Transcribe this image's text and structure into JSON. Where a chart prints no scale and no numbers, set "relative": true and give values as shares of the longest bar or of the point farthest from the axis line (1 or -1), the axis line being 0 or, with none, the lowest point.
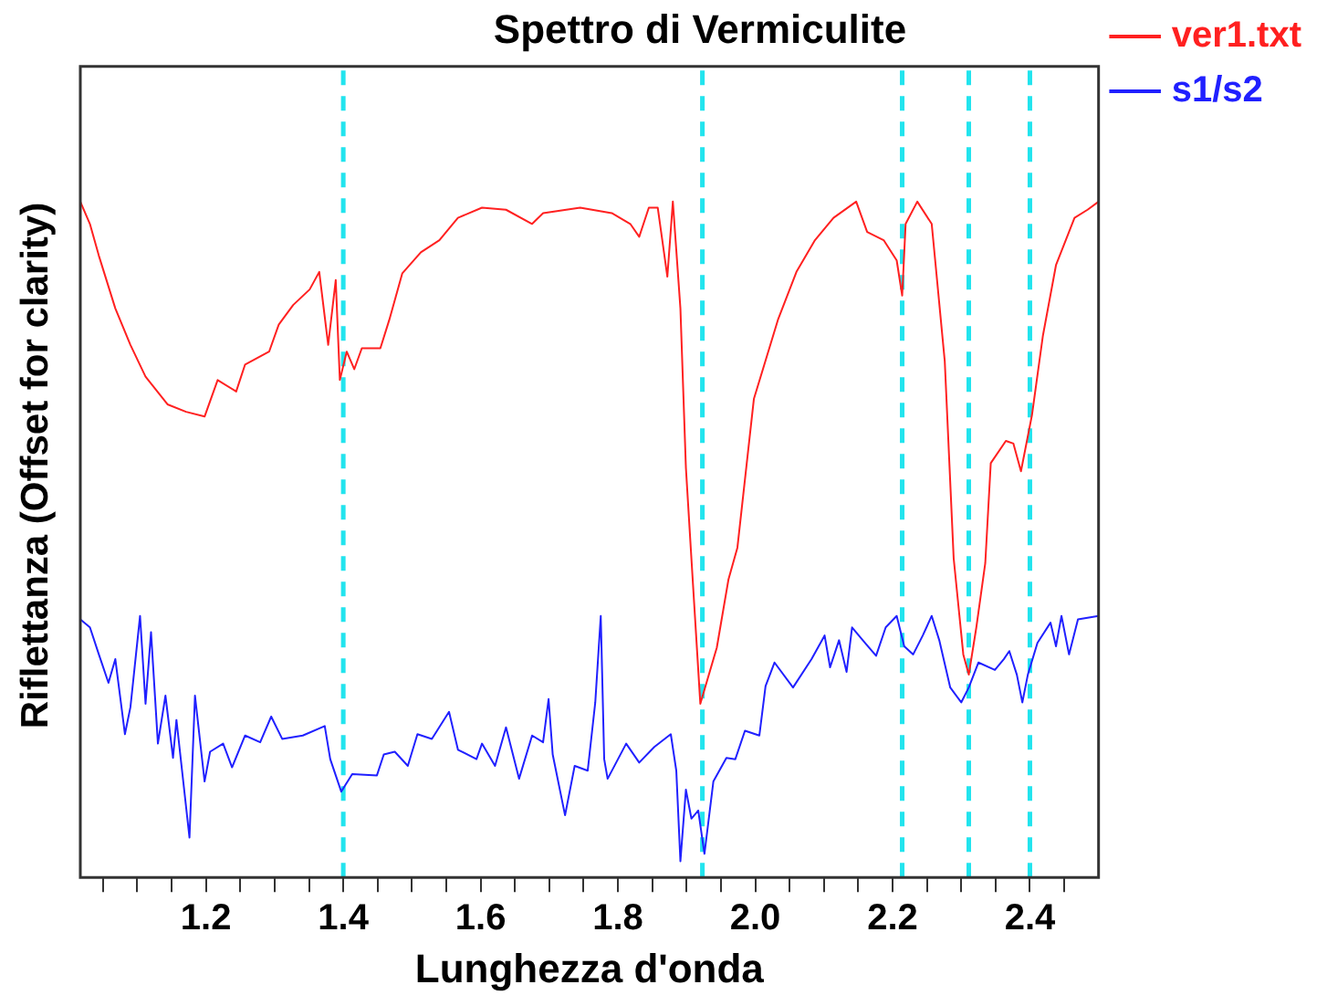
{
  "chart_data": {
    "type": "line",
    "title": "Spettro di Vermiculite",
    "xlabel": "Lunghezza d'onda",
    "ylabel": "Riflettanza (Offset for clarity)",
    "relative": true,
    "legend": "right",
    "xlim": [
      1.017,
      2.5
    ],
    "xticks": [
      {
        "value": 1.05,
        "label": null
      },
      {
        "value": 1.1,
        "label": null
      },
      {
        "value": 1.15,
        "label": null
      },
      {
        "value": 1.2,
        "label": "1.2"
      },
      {
        "value": 1.25,
        "label": null
      },
      {
        "value": 1.3,
        "label": null
      },
      {
        "value": 1.35,
        "label": null
      },
      {
        "value": 1.4,
        "label": "1.4"
      },
      {
        "value": 1.45,
        "label": null
      },
      {
        "value": 1.5,
        "label": null
      },
      {
        "value": 1.55,
        "label": null
      },
      {
        "value": 1.6,
        "label": "1.6"
      },
      {
        "value": 1.65,
        "label": null
      },
      {
        "value": 1.7,
        "label": null
      },
      {
        "value": 1.75,
        "label": null
      },
      {
        "value": 1.8,
        "label": "1.8"
      },
      {
        "value": 1.85,
        "label": null
      },
      {
        "value": 1.9,
        "label": null
      },
      {
        "value": 1.95,
        "label": null
      },
      {
        "value": 2.0,
        "label": "2.0"
      },
      {
        "value": 2.05,
        "label": null
      },
      {
        "value": 2.1,
        "label": null
      },
      {
        "value": 2.15,
        "label": null
      },
      {
        "value": 2.2,
        "label": "2.2"
      },
      {
        "value": 2.25,
        "label": null
      },
      {
        "value": 2.3,
        "label": null
      },
      {
        "value": 2.35,
        "label": null
      },
      {
        "value": 2.4,
        "label": "2.4"
      },
      {
        "value": 2.45,
        "label": null
      }
    ],
    "ref_lines": [
      {
        "axis": "x",
        "value": 1.4,
        "color": "#22e4ee",
        "line_style": "dashed"
      },
      {
        "axis": "x",
        "value": 1.923,
        "color": "#22e4ee",
        "line_style": "dashed"
      },
      {
        "axis": "x",
        "value": 2.214,
        "color": "#22e4ee",
        "line_style": "dashed"
      },
      {
        "axis": "x",
        "value": 2.311,
        "color": "#22e4ee",
        "line_style": "dashed"
      },
      {
        "axis": "x",
        "value": 2.4,
        "color": "#22e4ee",
        "line_style": "dashed"
      }
    ],
    "series": [
      {
        "name": "ver1.txt",
        "color": "#ff2020",
        "x": [
          1.017,
          1.031,
          1.044,
          1.068,
          1.09,
          1.112,
          1.144,
          1.171,
          1.198,
          1.217,
          1.244,
          1.257,
          1.292,
          1.306,
          1.327,
          1.351,
          1.365,
          1.378,
          1.389,
          1.395,
          1.405,
          1.416,
          1.427,
          1.454,
          1.467,
          1.486,
          1.513,
          1.54,
          1.567,
          1.602,
          1.637,
          1.675,
          1.691,
          1.745,
          1.791,
          1.818,
          1.831,
          1.845,
          1.858,
          1.872,
          1.88,
          1.891,
          1.899,
          1.907,
          1.92,
          1.944,
          1.961,
          1.974,
          1.998,
          2.033,
          2.06,
          2.087,
          2.114,
          2.147,
          2.163,
          2.187,
          2.206,
          2.214,
          2.219,
          2.236,
          2.257,
          2.276,
          2.289,
          2.303,
          2.311,
          2.322,
          2.335,
          2.343,
          2.365,
          2.376,
          2.387,
          2.403,
          2.419,
          2.438,
          2.465,
          2.484,
          2.5
        ],
        "values": [
          1,
          0.967,
          0.92,
          0.842,
          0.788,
          0.741,
          0.7,
          0.689,
          0.682,
          0.736,
          0.719,
          0.759,
          0.778,
          0.818,
          0.847,
          0.87,
          0.896,
          0.788,
          0.884,
          0.736,
          0.778,
          0.752,
          0.783,
          0.783,
          0.825,
          0.894,
          0.925,
          0.943,
          0.976,
          0.991,
          0.988,
          0.967,
          0.983,
          0.991,
          0.983,
          0.967,
          0.948,
          0.991,
          0.991,
          0.889,
          1,
          0.842,
          0.606,
          0.472,
          0.257,
          0.34,
          0.441,
          0.488,
          0.708,
          0.825,
          0.896,
          0.943,
          0.976,
          1,
          0.955,
          0.943,
          0.913,
          0.861,
          0.967,
          1,
          0.967,
          0.764,
          0.472,
          0.33,
          0.3,
          0.37,
          0.465,
          0.613,
          0.646,
          0.642,
          0.601,
          0.684,
          0.802,
          0.906,
          0.976,
          0.988,
          1
        ]
      },
      {
        "name": "s1/s2",
        "color": "#2020ff",
        "x": [
          1.017,
          1.031,
          1.044,
          1.058,
          1.068,
          1.082,
          1.09,
          1.104,
          1.112,
          1.12,
          1.13,
          1.141,
          1.152,
          1.157,
          1.176,
          1.184,
          1.198,
          1.206,
          1.225,
          1.238,
          1.257,
          1.279,
          1.295,
          1.311,
          1.341,
          1.373,
          1.381,
          1.397,
          1.413,
          1.449,
          1.459,
          1.475,
          1.494,
          1.508,
          1.529,
          1.554,
          1.567,
          1.594,
          1.602,
          1.621,
          1.637,
          1.656,
          1.675,
          1.691,
          1.699,
          1.705,
          1.723,
          1.737,
          1.756,
          1.767,
          1.775,
          1.78,
          1.785,
          1.812,
          1.831,
          1.853,
          1.877,
          1.885,
          1.891,
          1.899,
          1.907,
          1.917,
          1.926,
          1.939,
          1.958,
          1.971,
          1.985,
          2.006,
          2.015,
          2.028,
          2.055,
          2.082,
          2.101,
          2.109,
          2.122,
          2.133,
          2.141,
          2.16,
          2.176,
          2.19,
          2.206,
          2.217,
          2.23,
          2.244,
          2.257,
          2.268,
          2.284,
          2.3,
          2.311,
          2.325,
          2.349,
          2.362,
          2.37,
          2.381,
          2.389,
          2.397,
          2.411,
          2.43,
          2.438,
          2.446,
          2.457,
          2.47,
          2.5
        ],
        "values": [
          0.382,
          0.37,
          0.33,
          0.288,
          0.323,
          0.212,
          0.252,
          0.387,
          0.257,
          0.363,
          0.198,
          0.269,
          0.177,
          0.233,
          0.059,
          0.269,
          0.142,
          0.186,
          0.198,
          0.163,
          0.21,
          0.2,
          0.238,
          0.205,
          0.21,
          0.224,
          0.175,
          0.127,
          0.153,
          0.151,
          0.182,
          0.186,
          0.165,
          0.212,
          0.205,
          0.245,
          0.189,
          0.175,
          0.198,
          0.165,
          0.222,
          0.146,
          0.21,
          0.2,
          0.264,
          0.182,
          0.092,
          0.165,
          0.158,
          0.259,
          0.387,
          0.175,
          0.146,
          0.198,
          0.17,
          0.193,
          0.212,
          0.158,
          0.024,
          0.13,
          0.087,
          0.099,
          0.035,
          0.142,
          0.177,
          0.175,
          0.217,
          0.21,
          0.283,
          0.318,
          0.281,
          0.323,
          0.358,
          0.311,
          0.351,
          0.304,
          0.37,
          0.347,
          0.328,
          0.37,
          0.387,
          0.342,
          0.33,
          0.358,
          0.387,
          0.351,
          0.281,
          0.259,
          0.281,
          0.318,
          0.307,
          0.323,
          0.335,
          0.3,
          0.259,
          0.3,
          0.347,
          0.377,
          0.342,
          0.387,
          0.33,
          0.382,
          0.387
        ]
      }
    ]
  }
}
